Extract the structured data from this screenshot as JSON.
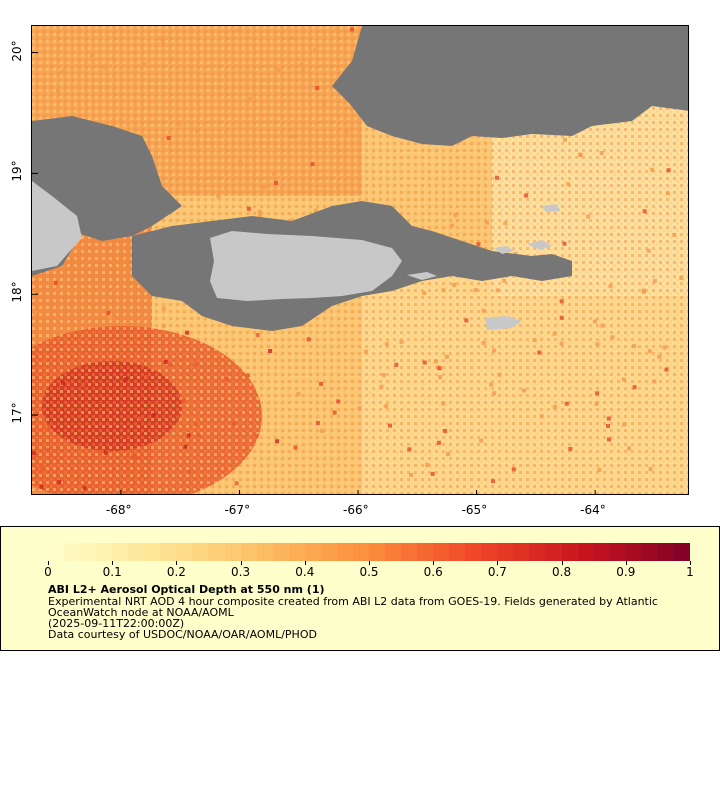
{
  "map": {
    "lat_labels": [
      "20°",
      "19°",
      "18°",
      "17°"
    ],
    "lon_labels": [
      "-68°",
      "-67°",
      "-66°",
      "-65°",
      "-64°"
    ],
    "lat_values": [
      20,
      19,
      18,
      17
    ],
    "lon_values": [
      -68,
      -67,
      -66,
      -65,
      -64
    ],
    "lat_range": [
      16.33,
      20.22
    ],
    "lon_range": [
      -68.75,
      -63.2
    ],
    "colors": {
      "no_data": "#767676",
      "land": "#c8c8c8",
      "low_aod": "#fee6a8",
      "high_aod": "#7f0020"
    }
  },
  "legend": {
    "tick_labels": [
      "0",
      "0.1",
      "0.2",
      "0.3",
      "0.4",
      "0.5",
      "0.6",
      "0.7",
      "0.8",
      "0.9",
      "1"
    ],
    "tick_values": [
      0,
      0.1,
      0.2,
      0.3,
      0.4,
      0.5,
      0.6,
      0.7,
      0.8,
      0.9,
      1
    ],
    "title": "ABI L2+ Aerosol Optical Depth at 550 nm (1)",
    "description": "Experimental NRT AOD 4 hour composite created from ABI L2 data from GOES-19. Fields generated by Atlantic OceanWatch node at NOAA/AOML",
    "time": "(2025-09-11T22:00:00Z)",
    "credit": "Data courtesy of USDOC/NOAA/OAR/AOML/PHOD"
  }
}
